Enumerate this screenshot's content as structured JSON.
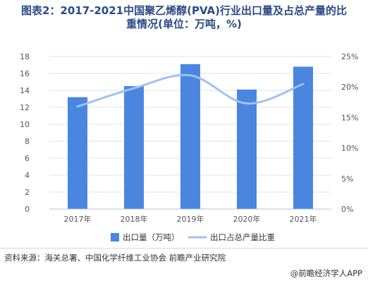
{
  "header": {
    "title_line1": "图表2：2017-2021中国聚乙烯醇(PVA)行业出口量及占总产量的比",
    "title_line2": "重情况(单位：万吨，%)"
  },
  "chart_data": {
    "type": "bar+line",
    "categories": [
      "2017年",
      "2018年",
      "2019年",
      "2020年",
      "2021年"
    ],
    "series": [
      {
        "name": "出口量（万吨）",
        "type": "bar",
        "axis": "left",
        "color": "#4a86e0",
        "values": [
          13.2,
          14.5,
          17.1,
          14.1,
          16.8
        ]
      },
      {
        "name": "出口占总产量比重",
        "type": "line",
        "axis": "right",
        "color": "#9dc3f2",
        "values": [
          16.8,
          19.8,
          21.9,
          17.3,
          20.5
        ]
      }
    ],
    "left_axis": {
      "min": 0,
      "max": 18,
      "step": 2,
      "ticks": [
        "0",
        "2",
        "4",
        "6",
        "8",
        "10",
        "12",
        "14",
        "16",
        "18"
      ]
    },
    "right_axis": {
      "min": 0,
      "max": 25,
      "step": 5,
      "ticks": [
        "0%",
        "5%",
        "10%",
        "15%",
        "20%",
        "25%"
      ]
    },
    "grid": true,
    "legend_position": "bottom"
  },
  "footer": {
    "source": "资料来源：海关总署、中国化学纤维工业协会 前瞻产业研究院",
    "brand": "@前瞻经济学人APP"
  }
}
